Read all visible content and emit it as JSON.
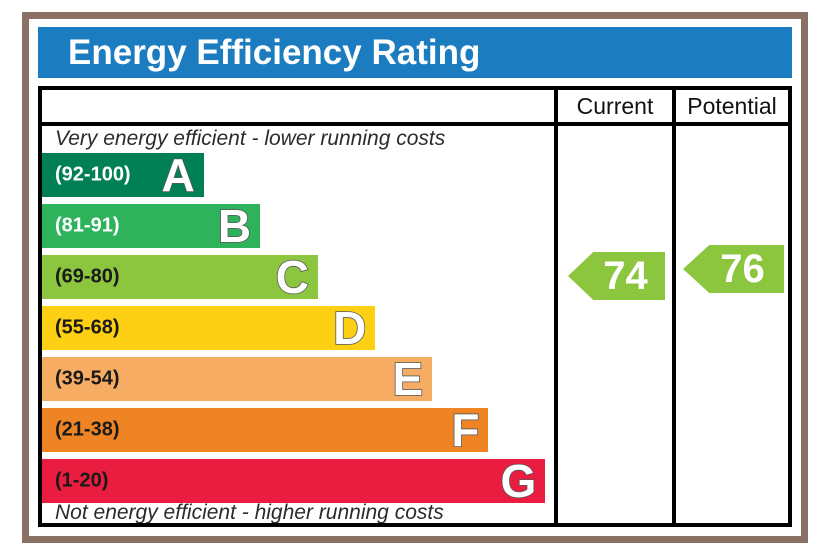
{
  "title": "Energy Efficiency Rating",
  "table": {
    "current_header": "Current",
    "potential_header": "Potential"
  },
  "captions": {
    "top": "Very energy efficient - lower running costs",
    "bottom": "Not energy efficient - higher running costs"
  },
  "bands": [
    {
      "letter": "A",
      "range": "(92-100)",
      "color": "#008054",
      "range_color": "#ffffff",
      "width_pct": 31.6
    },
    {
      "letter": "B",
      "range": "(81-91)",
      "color": "#2eb35c",
      "range_color": "#ffffff",
      "width_pct": 42.6
    },
    {
      "letter": "C",
      "range": "(69-80)",
      "color": "#8cc63f",
      "range_color": "#1a1a1a",
      "width_pct": 53.9
    },
    {
      "letter": "D",
      "range": "(55-68)",
      "color": "#fdd013",
      "range_color": "#1a1a1a",
      "width_pct": 65.1
    },
    {
      "letter": "E",
      "range": "(39-54)",
      "color": "#f7ac64",
      "range_color": "#1a1a1a",
      "width_pct": 76.2
    },
    {
      "letter": "F",
      "range": "(21-38)",
      "color": "#ee8424",
      "range_color": "#1a1a1a",
      "width_pct": 87.2
    },
    {
      "letter": "G",
      "range": "(1-20)",
      "color": "#ea1c3f",
      "range_color": "#1a1a1a",
      "width_pct": 98.3
    }
  ],
  "ratings": {
    "current": {
      "value": "74",
      "arrow_color": "#8cc63f"
    },
    "potential": {
      "value": "76",
      "arrow_color": "#8cc63f"
    }
  },
  "colors": {
    "header_bg": "#1c7cc0",
    "frame": "#8a7163",
    "table_border": "#000000"
  },
  "chart_data": {
    "type": "bar",
    "title": "Energy Efficiency Rating",
    "categories": [
      "A",
      "B",
      "C",
      "D",
      "E",
      "F",
      "G"
    ],
    "ranges": [
      "92-100",
      "81-91",
      "69-80",
      "55-68",
      "39-54",
      "21-38",
      "1-20"
    ],
    "band_colors": [
      "#008054",
      "#2eb35c",
      "#8cc63f",
      "#fdd013",
      "#f7ac64",
      "#ee8424",
      "#ea1c3f"
    ],
    "bar_width_pct": [
      31.6,
      42.6,
      53.9,
      65.1,
      76.2,
      87.2,
      98.3
    ],
    "columns": [
      "Current",
      "Potential"
    ],
    "current": 74,
    "potential": 76,
    "current_band": "C",
    "potential_band": "C",
    "top_label": "Very energy efficient - lower running costs",
    "bottom_label": "Not energy efficient - higher running costs",
    "legend_position": "none",
    "grid": false
  }
}
